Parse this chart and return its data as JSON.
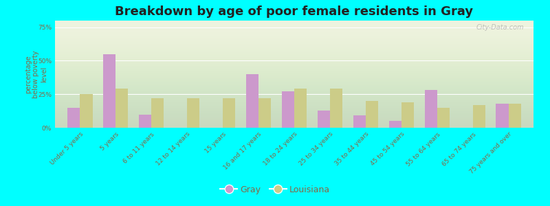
{
  "title": "Breakdown by age of poor female residents in Gray",
  "ylabel": "percentage\nbelow poverty\nlevel",
  "categories": [
    "Under 5 years",
    "5 years",
    "6 to 11 years",
    "12 to 14 years",
    "15 years",
    "16 and 17 years",
    "18 to 24 years",
    "25 to 34 years",
    "35 to 44 years",
    "45 to 54 years",
    "55 to 64 years",
    "65 to 74 years",
    "75 years and over"
  ],
  "gray_values": [
    15,
    55,
    10,
    0,
    0,
    40,
    27,
    13,
    9,
    5,
    28,
    0,
    18
  ],
  "louisiana_values": [
    25,
    29,
    22,
    22,
    22,
    22,
    29,
    29,
    20,
    19,
    15,
    17,
    18
  ],
  "gray_color": "#cc99cc",
  "louisiana_color": "#cccc88",
  "background_color": "#00ffff",
  "plot_bg_color": "#eef2dc",
  "ylim": [
    0,
    80
  ],
  "yticks": [
    0,
    25,
    50,
    75
  ],
  "ytick_labels": [
    "0%",
    "25%",
    "50%",
    "75%"
  ],
  "title_fontsize": 13,
  "axis_label_fontsize": 7,
  "tick_fontsize": 6.5,
  "legend_labels": [
    "Gray",
    "Louisiana"
  ],
  "watermark": "City-Data.com"
}
